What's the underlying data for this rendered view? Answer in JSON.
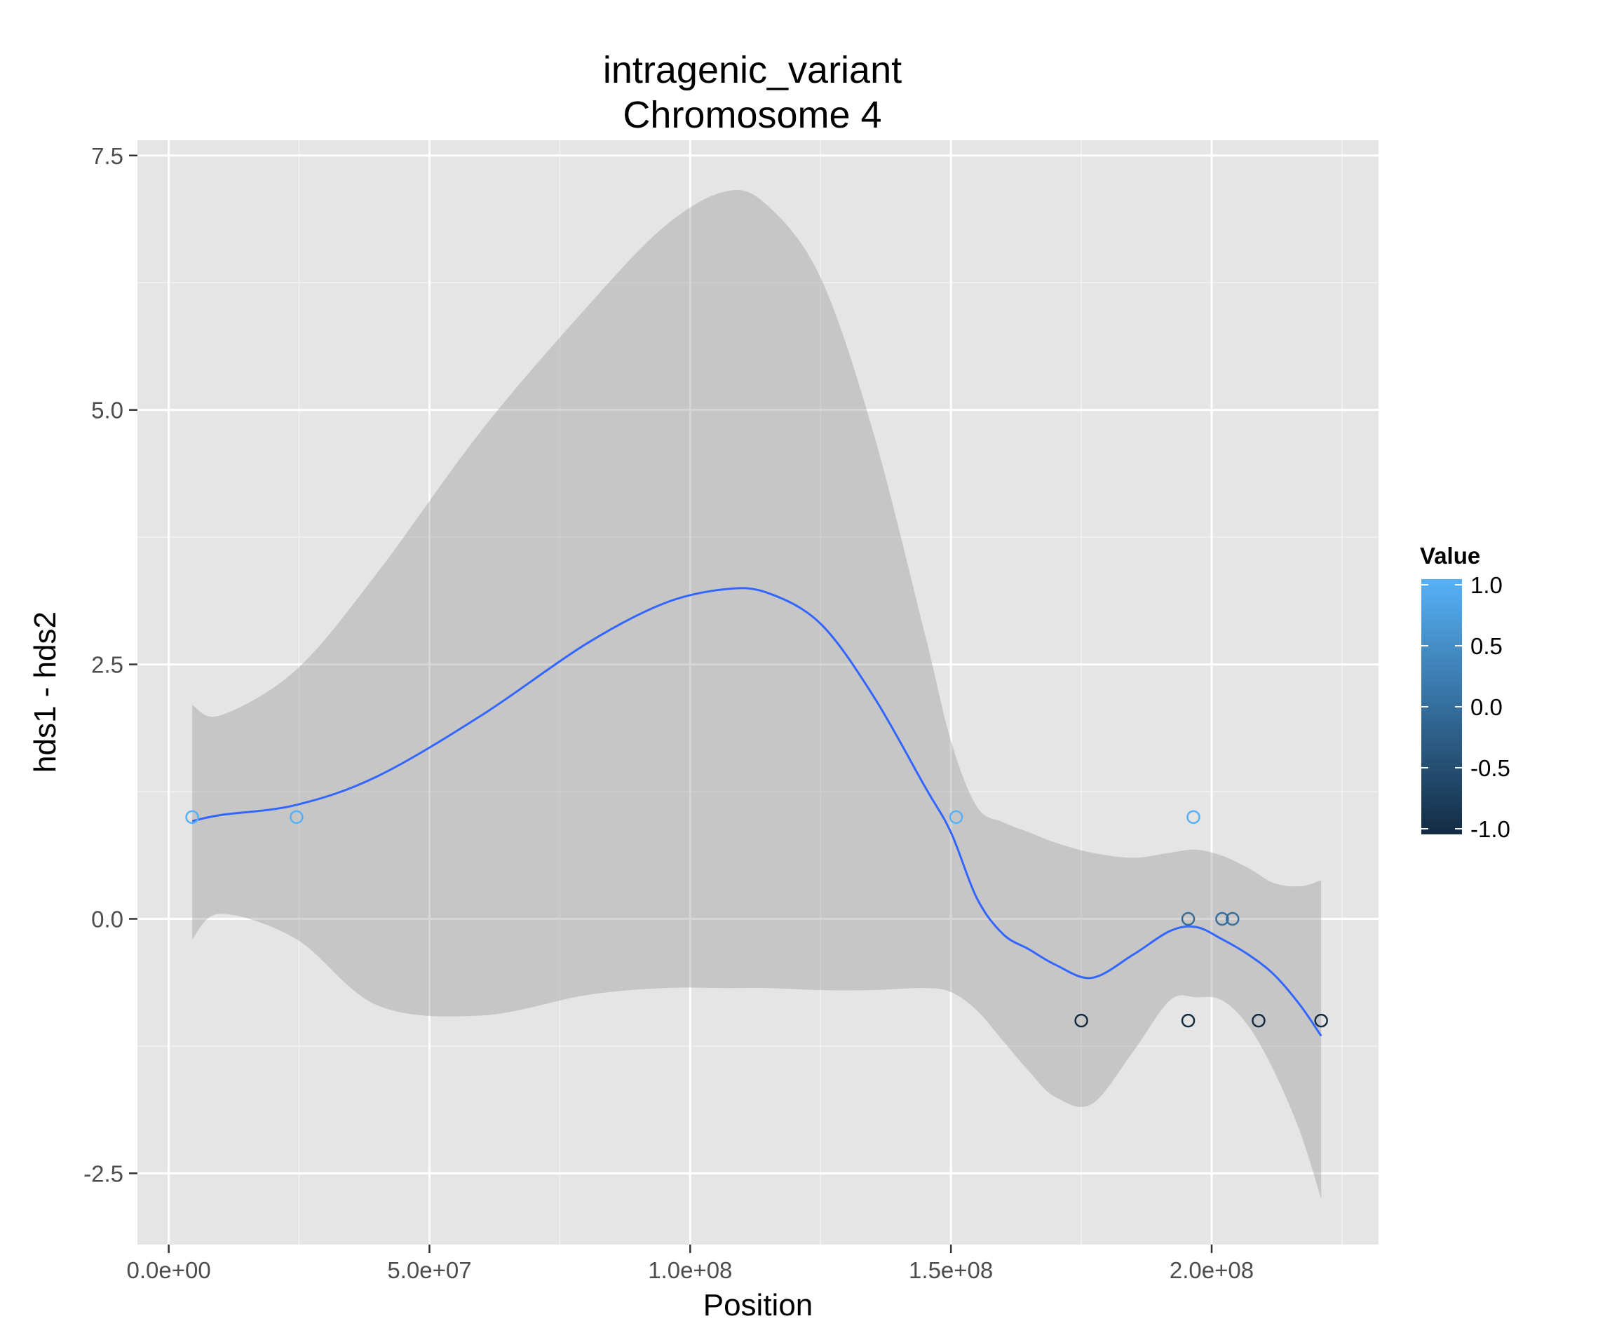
{
  "chart_data": {
    "type": "scatter",
    "title": "intragenic_variant",
    "subtitle": "Chromosome 4",
    "xlabel": "Position",
    "ylabel": "hds1 - hds2",
    "xlim": [
      -6000000,
      232000000
    ],
    "ylim": [
      -3.2,
      7.65
    ],
    "x_ticks": [
      0,
      50000000,
      100000000,
      150000000,
      200000000
    ],
    "x_tick_labels": [
      "0.0e+00",
      "5.0e+07",
      "1.0e+08",
      "1.5e+08",
      "2.0e+08"
    ],
    "y_ticks": [
      -2.5,
      0,
      2.5,
      5,
      7.5
    ],
    "y_tick_labels": [
      "-2.5",
      "0.0",
      "2.5",
      "5.0",
      "7.5"
    ],
    "grid": true,
    "points": [
      {
        "x": 4500000,
        "y": 1,
        "value": 1
      },
      {
        "x": 24500000,
        "y": 1,
        "value": 1
      },
      {
        "x": 151000000,
        "y": 1,
        "value": 1
      },
      {
        "x": 175000000,
        "y": -1,
        "value": -1
      },
      {
        "x": 195500000,
        "y": 0,
        "value": 0
      },
      {
        "x": 195500000,
        "y": -1,
        "value": -1
      },
      {
        "x": 196500000,
        "y": 1,
        "value": 1
      },
      {
        "x": 202000000,
        "y": 0,
        "value": 0
      },
      {
        "x": 204000000,
        "y": 0,
        "value": 0
      },
      {
        "x": 209000000,
        "y": -1,
        "value": -1
      },
      {
        "x": 221000000,
        "y": -1,
        "value": -1
      }
    ],
    "smooth": {
      "color": "#3366ff",
      "x": [
        4500000,
        10000000,
        24500000,
        40000000,
        60000000,
        80000000,
        95000000,
        107000000,
        115000000,
        125000000,
        135000000,
        145000000,
        150000000,
        155000000,
        160000000,
        165000000,
        170000000,
        177000000,
        185000000,
        192000000,
        197000000,
        202000000,
        207000000,
        212000000,
        217000000,
        221000000
      ],
      "y": [
        0.96,
        1.02,
        1.12,
        1.4,
        2.0,
        2.7,
        3.1,
        3.24,
        3.2,
        2.9,
        2.2,
        1.3,
        0.85,
        0.2,
        -0.15,
        -0.3,
        -0.45,
        -0.58,
        -0.35,
        -0.12,
        -0.08,
        -0.2,
        -0.35,
        -0.55,
        -0.85,
        -1.15
      ],
      "upper": [
        2.1,
        2.0,
        2.45,
        3.4,
        4.8,
        6.0,
        6.8,
        7.15,
        7.0,
        6.3,
        4.8,
        2.8,
        1.75,
        1.1,
        0.95,
        0.85,
        0.75,
        0.65,
        0.6,
        0.65,
        0.68,
        0.62,
        0.5,
        0.35,
        0.32,
        0.38
      ],
      "lower": [
        -0.2,
        0.05,
        -0.2,
        -0.85,
        -0.95,
        -0.75,
        -0.68,
        -0.68,
        -0.68,
        -0.7,
        -0.7,
        -0.68,
        -0.72,
        -0.9,
        -1.2,
        -1.5,
        -1.75,
        -1.82,
        -1.3,
        -0.8,
        -0.77,
        -0.8,
        -1.05,
        -1.5,
        -2.1,
        -2.75
      ]
    },
    "legend": {
      "title": "Value",
      "placement": "right",
      "labels": [
        "1.0",
        "0.5",
        "0.0",
        "-0.5",
        "-1.0"
      ],
      "values": [
        1,
        0.5,
        0,
        -0.5,
        -1
      ],
      "color_low": "#132b43",
      "color_high": "#56b1f7"
    },
    "colors": {
      "panel_bg": "#e5e5e5",
      "grid_major": "#ffffff",
      "grid_minor": "#f2f2f2",
      "ribbon": "#999999"
    }
  }
}
